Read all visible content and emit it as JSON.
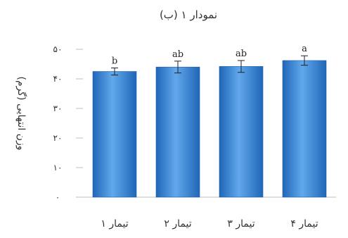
{
  "chart_data": {
    "type": "bar",
    "title": "نمودار ۱ (ب)",
    "xlabel": "",
    "ylabel": "وزن انتهایی (گرم)",
    "categories": [
      "تیمار ۱",
      "تیمار ۲",
      "تیمار ۳",
      "تیمار ۴"
    ],
    "values": [
      42.5,
      44,
      44.2,
      46.2
    ],
    "error": [
      1.2,
      2.0,
      2.0,
      1.6
    ],
    "significance_letters": [
      "b",
      "ab",
      "ab",
      "a"
    ],
    "ylim": [
      0,
      50
    ],
    "yticks": [
      0,
      10,
      20,
      30,
      40,
      50
    ],
    "ytick_labels": [
      "۰",
      "۱۰",
      "۲۰",
      "۳۰",
      "۴۰",
      "۵۰"
    ],
    "grid": false,
    "legend": "none",
    "bar_color": "#2E7BD1",
    "bar_highlight_color": "#62A8EC"
  }
}
